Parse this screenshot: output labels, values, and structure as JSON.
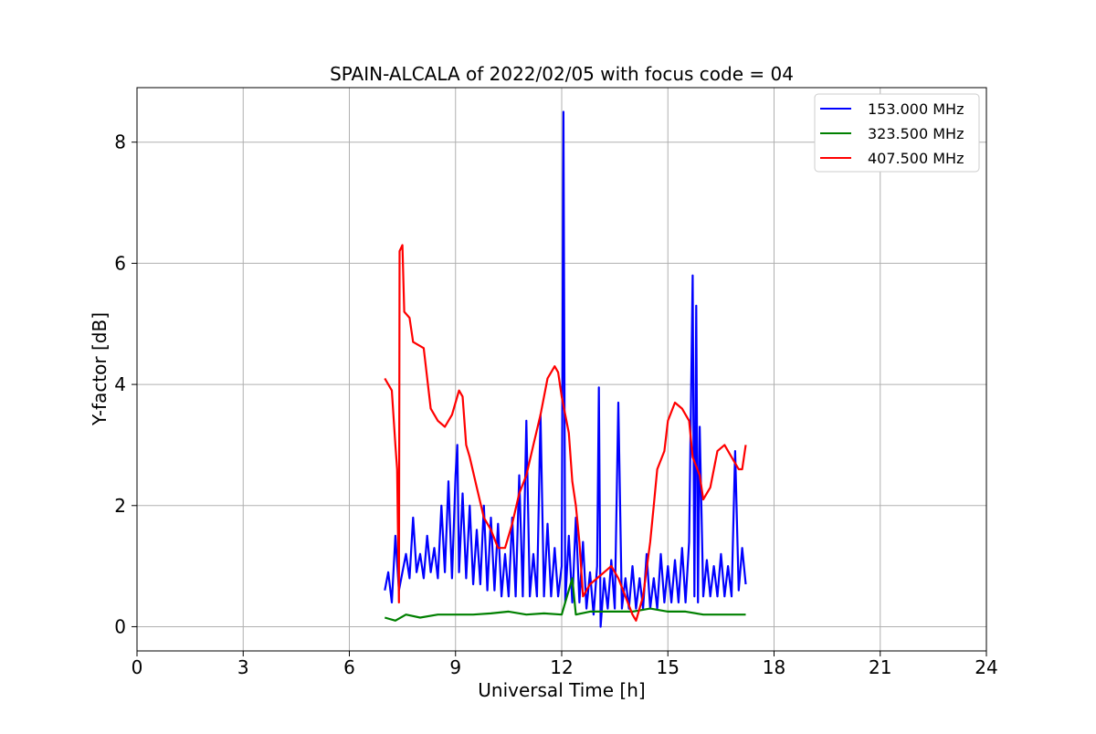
{
  "chart_data": {
    "type": "line",
    "title": "SPAIN-ALCALA of 2022/02/05 with focus code = 04",
    "xlabel": "Universal Time [h]",
    "ylabel": "Y-factor [dB]",
    "xlim": [
      0,
      24
    ],
    "ylim": [
      -0.4,
      8.9
    ],
    "xticks": [
      0,
      3,
      6,
      9,
      12,
      15,
      18,
      21,
      24
    ],
    "yticks": [
      0,
      2,
      4,
      6,
      8
    ],
    "grid": true,
    "legend_position": "top-right",
    "series": [
      {
        "name": "153.000 MHz",
        "color": "#0000ff",
        "points": [
          [
            7.0,
            0.6
          ],
          [
            7.1,
            0.9
          ],
          [
            7.2,
            0.4
          ],
          [
            7.3,
            1.5
          ],
          [
            7.4,
            0.6
          ],
          [
            7.5,
            0.9
          ],
          [
            7.6,
            1.2
          ],
          [
            7.7,
            0.8
          ],
          [
            7.8,
            1.8
          ],
          [
            7.9,
            0.9
          ],
          [
            8.0,
            1.2
          ],
          [
            8.1,
            0.8
          ],
          [
            8.2,
            1.5
          ],
          [
            8.3,
            0.9
          ],
          [
            8.4,
            1.3
          ],
          [
            8.5,
            0.8
          ],
          [
            8.6,
            2.0
          ],
          [
            8.7,
            0.9
          ],
          [
            8.8,
            2.4
          ],
          [
            8.9,
            0.8
          ],
          [
            9.0,
            2.5
          ],
          [
            9.05,
            3.0
          ],
          [
            9.1,
            0.9
          ],
          [
            9.2,
            2.2
          ],
          [
            9.3,
            0.8
          ],
          [
            9.4,
            2.0
          ],
          [
            9.5,
            0.7
          ],
          [
            9.6,
            1.6
          ],
          [
            9.7,
            0.7
          ],
          [
            9.8,
            2.0
          ],
          [
            9.9,
            0.6
          ],
          [
            10.0,
            1.8
          ],
          [
            10.1,
            0.6
          ],
          [
            10.2,
            1.7
          ],
          [
            10.3,
            0.5
          ],
          [
            10.4,
            1.2
          ],
          [
            10.5,
            0.5
          ],
          [
            10.6,
            1.8
          ],
          [
            10.7,
            0.5
          ],
          [
            10.8,
            2.5
          ],
          [
            10.9,
            0.5
          ],
          [
            11.0,
            3.4
          ],
          [
            11.1,
            0.5
          ],
          [
            11.2,
            1.2
          ],
          [
            11.3,
            0.5
          ],
          [
            11.4,
            3.5
          ],
          [
            11.5,
            0.5
          ],
          [
            11.6,
            1.7
          ],
          [
            11.7,
            0.5
          ],
          [
            11.8,
            1.3
          ],
          [
            11.9,
            0.5
          ],
          [
            12.0,
            1.0
          ],
          [
            12.05,
            8.5
          ],
          [
            12.1,
            0.4
          ],
          [
            12.2,
            1.5
          ],
          [
            12.3,
            0.4
          ],
          [
            12.4,
            1.8
          ],
          [
            12.5,
            0.4
          ],
          [
            12.6,
            1.4
          ],
          [
            12.7,
            0.3
          ],
          [
            12.8,
            0.9
          ],
          [
            12.9,
            0.2
          ],
          [
            13.0,
            1.0
          ],
          [
            13.05,
            3.95
          ],
          [
            13.1,
            0.0
          ],
          [
            13.2,
            0.8
          ],
          [
            13.3,
            0.3
          ],
          [
            13.4,
            1.1
          ],
          [
            13.5,
            0.3
          ],
          [
            13.6,
            3.7
          ],
          [
            13.7,
            0.3
          ],
          [
            13.8,
            0.8
          ],
          [
            13.9,
            0.3
          ],
          [
            14.0,
            1.0
          ],
          [
            14.1,
            0.3
          ],
          [
            14.2,
            0.8
          ],
          [
            14.3,
            0.3
          ],
          [
            14.4,
            1.2
          ],
          [
            14.5,
            0.3
          ],
          [
            14.6,
            0.8
          ],
          [
            14.7,
            0.3
          ],
          [
            14.8,
            1.2
          ],
          [
            14.9,
            0.4
          ],
          [
            15.0,
            1.0
          ],
          [
            15.1,
            0.4
          ],
          [
            15.2,
            1.1
          ],
          [
            15.3,
            0.4
          ],
          [
            15.4,
            1.3
          ],
          [
            15.5,
            0.4
          ],
          [
            15.6,
            1.4
          ],
          [
            15.7,
            5.8
          ],
          [
            15.75,
            0.5
          ],
          [
            15.8,
            5.3
          ],
          [
            15.85,
            0.4
          ],
          [
            15.9,
            3.3
          ],
          [
            16.0,
            0.5
          ],
          [
            16.1,
            1.1
          ],
          [
            16.2,
            0.5
          ],
          [
            16.3,
            1.0
          ],
          [
            16.4,
            0.5
          ],
          [
            16.5,
            1.2
          ],
          [
            16.6,
            0.5
          ],
          [
            16.7,
            1.0
          ],
          [
            16.8,
            0.5
          ],
          [
            16.9,
            2.9
          ],
          [
            17.0,
            0.6
          ],
          [
            17.1,
            1.3
          ],
          [
            17.2,
            0.7
          ]
        ]
      },
      {
        "name": "323.500 MHz",
        "color": "#008000",
        "points": [
          [
            7.0,
            0.15
          ],
          [
            7.3,
            0.1
          ],
          [
            7.6,
            0.2
          ],
          [
            8.0,
            0.15
          ],
          [
            8.5,
            0.2
          ],
          [
            9.0,
            0.2
          ],
          [
            9.5,
            0.2
          ],
          [
            10.0,
            0.22
          ],
          [
            10.5,
            0.25
          ],
          [
            11.0,
            0.2
          ],
          [
            11.5,
            0.22
          ],
          [
            12.0,
            0.2
          ],
          [
            12.3,
            0.8
          ],
          [
            12.4,
            0.2
          ],
          [
            12.8,
            0.25
          ],
          [
            13.2,
            0.25
          ],
          [
            13.6,
            0.25
          ],
          [
            14.0,
            0.25
          ],
          [
            14.5,
            0.3
          ],
          [
            15.0,
            0.25
          ],
          [
            15.5,
            0.25
          ],
          [
            16.0,
            0.2
          ],
          [
            16.5,
            0.2
          ],
          [
            17.0,
            0.2
          ],
          [
            17.2,
            0.2
          ]
        ]
      },
      {
        "name": "407.500 MHz",
        "color": "#ff0000",
        "points": [
          [
            7.0,
            4.1
          ],
          [
            7.2,
            3.9
          ],
          [
            7.3,
            3.0
          ],
          [
            7.35,
            2.6
          ],
          [
            7.4,
            0.4
          ],
          [
            7.42,
            6.2
          ],
          [
            7.5,
            6.3
          ],
          [
            7.55,
            5.2
          ],
          [
            7.7,
            5.1
          ],
          [
            7.8,
            4.7
          ],
          [
            8.1,
            4.6
          ],
          [
            8.3,
            3.6
          ],
          [
            8.5,
            3.4
          ],
          [
            8.7,
            3.3
          ],
          [
            8.9,
            3.5
          ],
          [
            9.1,
            3.9
          ],
          [
            9.2,
            3.8
          ],
          [
            9.3,
            3.0
          ],
          [
            9.4,
            2.8
          ],
          [
            9.6,
            2.3
          ],
          [
            9.8,
            1.8
          ],
          [
            10.0,
            1.6
          ],
          [
            10.2,
            1.3
          ],
          [
            10.4,
            1.3
          ],
          [
            10.6,
            1.7
          ],
          [
            10.8,
            2.2
          ],
          [
            11.0,
            2.5
          ],
          [
            11.2,
            3.0
          ],
          [
            11.4,
            3.5
          ],
          [
            11.6,
            4.1
          ],
          [
            11.8,
            4.3
          ],
          [
            11.9,
            4.2
          ],
          [
            12.0,
            3.8
          ],
          [
            12.2,
            3.2
          ],
          [
            12.3,
            2.4
          ],
          [
            12.4,
            2.0
          ],
          [
            12.5,
            1.4
          ],
          [
            12.6,
            0.5
          ],
          [
            12.8,
            0.7
          ],
          [
            13.0,
            0.8
          ],
          [
            13.2,
            0.9
          ],
          [
            13.4,
            1.0
          ],
          [
            13.6,
            0.8
          ],
          [
            13.8,
            0.5
          ],
          [
            14.0,
            0.2
          ],
          [
            14.1,
            0.1
          ],
          [
            14.3,
            0.5
          ],
          [
            14.5,
            1.4
          ],
          [
            14.6,
            2.0
          ],
          [
            14.7,
            2.6
          ],
          [
            14.9,
            2.9
          ],
          [
            15.0,
            3.4
          ],
          [
            15.2,
            3.7
          ],
          [
            15.4,
            3.6
          ],
          [
            15.6,
            3.4
          ],
          [
            15.7,
            2.8
          ],
          [
            15.9,
            2.5
          ],
          [
            16.0,
            2.1
          ],
          [
            16.2,
            2.3
          ],
          [
            16.4,
            2.9
          ],
          [
            16.6,
            3.0
          ],
          [
            16.8,
            2.8
          ],
          [
            17.0,
            2.6
          ],
          [
            17.1,
            2.6
          ],
          [
            17.2,
            3.0
          ]
        ]
      }
    ]
  }
}
